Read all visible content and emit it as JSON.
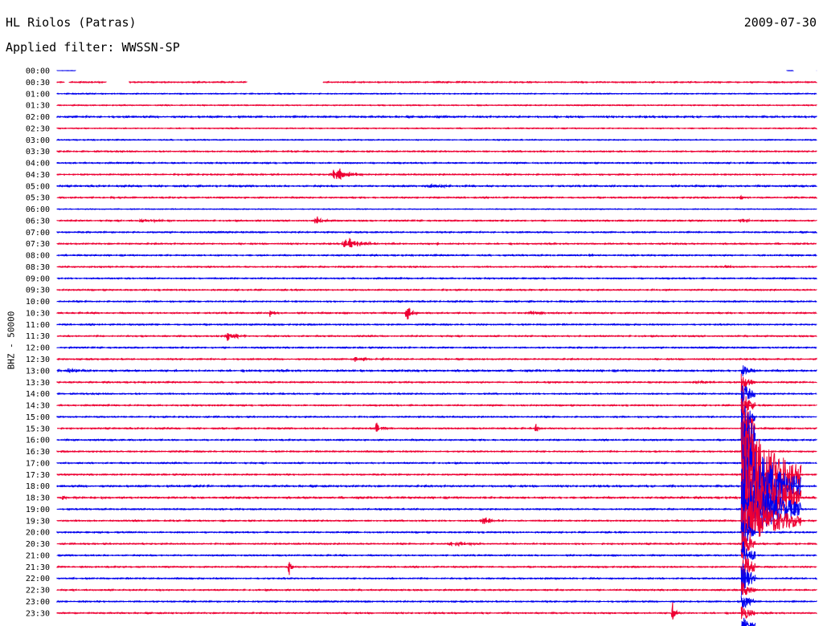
{
  "header": {
    "station": "HL Riolos (Patras)",
    "date": "2009-07-30",
    "filter": "Applied filter: WWSSN-SP"
  },
  "colors": {
    "trace_a": "#0000ee",
    "trace_b": "#ee0033",
    "background": "#ffffff"
  },
  "chart_data": {
    "type": "line",
    "subtype": "helicorder",
    "title": "HL Riolos (Patras)",
    "date": "2009-07-30",
    "filter": "WWSSN-SP",
    "ylabel": "BHZ - 50000",
    "row_duration_min": 30,
    "alternating_colors": [
      "#0000ee",
      "#ee0033"
    ],
    "rows": [
      {
        "label": "00:00",
        "noise": 0.2,
        "gaps": [
          [
            0.025,
            0.96
          ],
          [
            0.97,
            1.0
          ]
        ],
        "events": []
      },
      {
        "label": "00:30",
        "noise": 0.8,
        "gaps": [
          [
            0.01,
            0.015
          ],
          [
            0.065,
            0.095
          ],
          [
            0.25,
            0.35
          ]
        ],
        "events": []
      },
      {
        "label": "01:00",
        "noise": 0.6,
        "events": []
      },
      {
        "label": "01:30",
        "noise": 0.6,
        "events": []
      },
      {
        "label": "02:00",
        "noise": 1.0,
        "events": [
          {
            "pos": 0.5,
            "amp": 1.5,
            "dur": 0.02
          }
        ]
      },
      {
        "label": "02:30",
        "noise": 0.6,
        "events": []
      },
      {
        "label": "03:00",
        "noise": 0.6,
        "events": []
      },
      {
        "label": "03:30",
        "noise": 0.8,
        "events": []
      },
      {
        "label": "04:00",
        "noise": 0.8,
        "events": []
      },
      {
        "label": "04:30",
        "noise": 0.8,
        "events": [
          {
            "pos": 0.365,
            "amp": 12,
            "dur": 0.025
          }
        ]
      },
      {
        "label": "05:00",
        "noise": 0.9,
        "events": [
          {
            "pos": 0.49,
            "amp": 3,
            "dur": 0.03
          }
        ]
      },
      {
        "label": "05:30",
        "noise": 0.8,
        "events": [
          {
            "pos": 0.065,
            "amp": 2,
            "dur": 0.02
          },
          {
            "pos": 0.9,
            "amp": 3,
            "dur": 0.01
          }
        ]
      },
      {
        "label": "06:00",
        "noise": 0.5,
        "events": []
      },
      {
        "label": "06:30",
        "noise": 0.8,
        "events": [
          {
            "pos": 0.11,
            "amp": 3,
            "dur": 0.03
          },
          {
            "pos": 0.34,
            "amp": 8,
            "dur": 0.01
          },
          {
            "pos": 0.9,
            "amp": 3,
            "dur": 0.02
          }
        ]
      },
      {
        "label": "07:00",
        "noise": 0.8,
        "events": []
      },
      {
        "label": "07:30",
        "noise": 0.8,
        "events": [
          {
            "pos": 0.38,
            "amp": 10,
            "dur": 0.03
          },
          {
            "pos": 0.5,
            "amp": 2,
            "dur": 0.02
          }
        ]
      },
      {
        "label": "08:00",
        "noise": 0.8,
        "events": [
          {
            "pos": 0.7,
            "amp": 3,
            "dur": 0.01
          }
        ]
      },
      {
        "label": "08:30",
        "noise": 0.8,
        "events": [
          {
            "pos": 0.88,
            "amp": 4,
            "dur": 0.01
          }
        ]
      },
      {
        "label": "09:00",
        "noise": 0.8,
        "events": []
      },
      {
        "label": "09:30",
        "noise": 0.8,
        "events": []
      },
      {
        "label": "10:00",
        "noise": 0.8,
        "events": []
      },
      {
        "label": "10:30",
        "noise": 0.8,
        "events": [
          {
            "pos": 0.28,
            "amp": 6,
            "dur": 0.008
          },
          {
            "pos": 0.46,
            "amp": 14,
            "dur": 0.008
          },
          {
            "pos": 0.625,
            "amp": 4,
            "dur": 0.02
          }
        ]
      },
      {
        "label": "11:00",
        "noise": 0.8,
        "events": []
      },
      {
        "label": "11:30",
        "noise": 0.8,
        "events": [
          {
            "pos": 0.225,
            "amp": 8,
            "dur": 0.02
          }
        ]
      },
      {
        "label": "12:00",
        "noise": 0.8,
        "events": []
      },
      {
        "label": "12:30",
        "noise": 0.8,
        "events": [
          {
            "pos": 0.39,
            "amp": 3,
            "dur": 0.03
          }
        ]
      },
      {
        "label": "13:00",
        "noise": 1.0,
        "events": [
          {
            "pos": 0.015,
            "amp": 4,
            "dur": 0.02
          }
        ]
      },
      {
        "label": "13:30",
        "noise": 0.8,
        "events": [
          {
            "pos": 0.84,
            "amp": 3,
            "dur": 0.03
          }
        ]
      },
      {
        "label": "14:00",
        "noise": 0.8,
        "events": []
      },
      {
        "label": "14:30",
        "noise": 0.8,
        "events": []
      },
      {
        "label": "15:00",
        "noise": 0.8,
        "events": []
      },
      {
        "label": "15:30",
        "noise": 0.8,
        "events": [
          {
            "pos": 0.42,
            "amp": 12,
            "dur": 0.01
          },
          {
            "pos": 0.63,
            "amp": 6,
            "dur": 0.008
          }
        ]
      },
      {
        "label": "16:00",
        "noise": 0.8,
        "events": []
      },
      {
        "label": "16:30",
        "noise": 0.8,
        "events": []
      },
      {
        "label": "17:00",
        "noise": 0.8,
        "events": []
      },
      {
        "label": "17:30",
        "noise": 0.8,
        "events": []
      },
      {
        "label": "18:00",
        "noise": 1.0,
        "events": [
          {
            "pos": 0.18,
            "amp": 3,
            "dur": 0.01
          }
        ]
      },
      {
        "label": "18:30",
        "noise": 1.0,
        "events": [
          {
            "pos": 0.005,
            "amp": 3,
            "dur": 0.03
          }
        ]
      },
      {
        "label": "19:00",
        "noise": 0.8,
        "events": []
      },
      {
        "label": "19:30",
        "noise": 0.8,
        "events": [
          {
            "pos": 0.56,
            "amp": 6,
            "dur": 0.02
          }
        ]
      },
      {
        "label": "20:00",
        "noise": 0.8,
        "events": []
      },
      {
        "label": "20:30",
        "noise": 0.8,
        "events": [
          {
            "pos": 0.52,
            "amp": 4,
            "dur": 0.03
          }
        ]
      },
      {
        "label": "21:00",
        "noise": 0.8,
        "events": []
      },
      {
        "label": "21:30",
        "noise": 0.8,
        "events": [
          {
            "pos": 0.305,
            "amp": 14,
            "dur": 0.006
          }
        ]
      },
      {
        "label": "22:00",
        "noise": 0.8,
        "events": []
      },
      {
        "label": "22:30",
        "noise": 0.8,
        "events": []
      },
      {
        "label": "23:00",
        "noise": 0.8,
        "events": []
      },
      {
        "label": "23:30",
        "noise": 0.8,
        "events": [
          {
            "pos": 0.81,
            "amp": 16,
            "dur": 0.006
          }
        ]
      }
    ],
    "major_event": {
      "start_row": 26,
      "end_row": 48,
      "pos": 0.905,
      "max_amp": 80
    }
  }
}
